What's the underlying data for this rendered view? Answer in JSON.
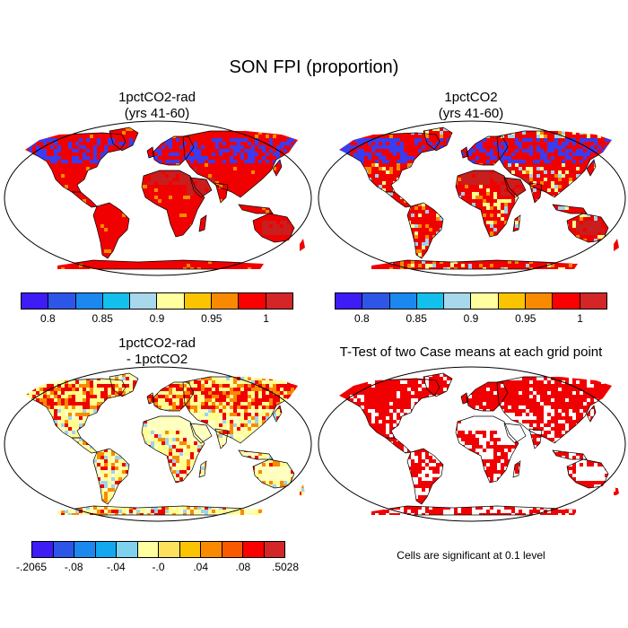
{
  "title": "SON FPI (proportion)",
  "panels": [
    {
      "title_line1": "1pctCO2-rad",
      "title_line2": "(yrs 41-60)"
    },
    {
      "title_line1": "1pctCO2",
      "title_line2": "(yrs 41-60)"
    },
    {
      "title_line1": "1pctCO2-rad",
      "title_line2": "- 1pctCO2"
    },
    {
      "title_line1": "T-Test of two Case means at each grid point",
      "title_line2": ""
    }
  ],
  "colorbar_top": {
    "colors": [
      "#3d1cf5",
      "#2d56e8",
      "#1b88f0",
      "#12c0ec",
      "#a7d8ec",
      "#ffffa0",
      "#fbc400",
      "#f98a00",
      "#fb0000",
      "#d42626"
    ],
    "tick_labels": [
      "0.8",
      "0.85",
      "0.9",
      "0.95",
      "1"
    ],
    "tick_boundaries": [
      1,
      3,
      5,
      7,
      9
    ]
  },
  "colorbar_diff": {
    "colors": [
      "#3d1cf5",
      "#2d56e8",
      "#1b88f0",
      "#12a8f0",
      "#7fd2ee",
      "#ffffa0",
      "#ffe05c",
      "#fbc400",
      "#f98a00",
      "#f95a00",
      "#fb0000",
      "#d42626"
    ],
    "tick_labels": [
      "-.2065",
      "-.08",
      "-.04",
      "-.0",
      ".04",
      ".08",
      ".5028"
    ],
    "tick_boundaries": [
      0,
      2,
      4,
      6,
      8,
      10,
      12
    ]
  },
  "significance_note": "Cells are significant at 0.1 level",
  "map_colors": {
    "ocean": "#ffffff",
    "outline": "#000000",
    "high": "#f00000",
    "dark": "#c81e1e",
    "orange": "#f98a00",
    "yellow": "#ffff90",
    "paleyellow": "#ffffc0",
    "blue": "#3a3cf0",
    "lightblue": "#9fd2ee",
    "signif": "#f00000"
  }
}
